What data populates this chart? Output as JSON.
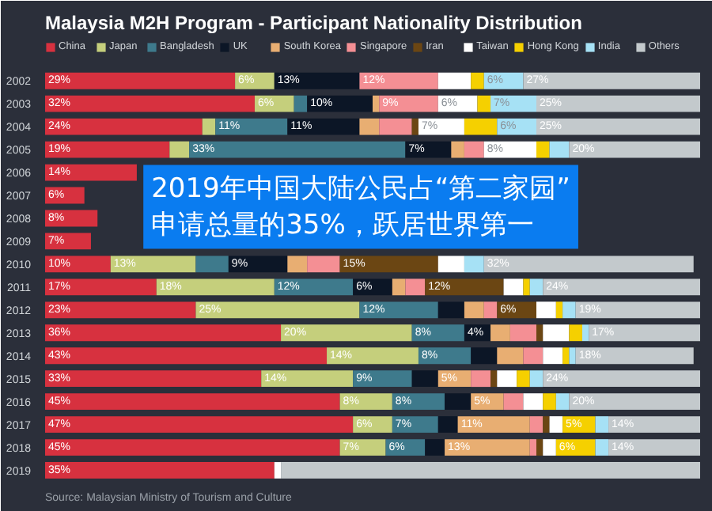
{
  "chart_data": {
    "type": "bar",
    "title": "Malaysia M2H Program - Participant Nationality Distribution",
    "orientation": "horizontal",
    "stacked": true,
    "legend": "top",
    "tick_labels": "y",
    "grid": false,
    "xlim": [
      0,
      100
    ],
    "categories": [
      "2002",
      "2003",
      "2004",
      "2005",
      "2006",
      "2007",
      "2008",
      "2009",
      "2010",
      "2011",
      "2012",
      "2013",
      "2014",
      "2015",
      "2016",
      "2017",
      "2018",
      "2019"
    ],
    "series": [
      {
        "name": "China",
        "color": "#d7313f",
        "values": [
          29,
          32,
          24,
          19,
          14,
          6,
          8,
          7,
          10,
          17,
          23,
          36,
          43,
          33,
          45,
          47,
          45,
          35
        ],
        "value_labels": [
          "29%",
          "32%",
          "24%",
          "19%",
          "14%",
          "6%",
          "8%",
          "7%",
          "10%",
          "17%",
          "23%",
          "36%",
          "43%",
          "33%",
          "45%",
          "47%",
          "45%",
          "35%"
        ]
      },
      {
        "name": "Japan",
        "color": "#c5cf7c",
        "values": [
          6,
          6,
          2,
          3,
          null,
          null,
          null,
          null,
          13,
          18,
          25,
          20,
          14,
          14,
          8,
          6,
          7,
          0
        ],
        "value_labels": [
          "6%",
          "6%",
          null,
          null,
          null,
          null,
          null,
          null,
          "13%",
          "18%",
          "25%",
          "20%",
          "14%",
          "14%",
          "8%",
          "6%",
          "7%",
          null
        ]
      },
      {
        "name": "Bangladesh",
        "color": "#3e7a8c",
        "values": [
          0,
          2,
          11,
          33,
          null,
          null,
          null,
          null,
          5,
          12,
          12,
          8,
          8,
          9,
          8,
          7,
          6,
          0
        ],
        "value_labels": [
          null,
          null,
          "11%",
          "33%",
          null,
          null,
          null,
          null,
          null,
          "12%",
          "12%",
          "8%",
          "8%",
          "9%",
          "8%",
          "7%",
          "6%",
          null
        ]
      },
      {
        "name": "UK",
        "color": "#0c1626",
        "values": [
          13,
          10,
          11,
          7,
          null,
          null,
          null,
          null,
          9,
          6,
          4,
          4,
          4,
          4,
          4,
          3,
          3,
          0
        ],
        "value_labels": [
          "13%",
          "10%",
          "11%",
          "7%",
          null,
          null,
          null,
          null,
          "9%",
          "6%",
          null,
          "4%",
          null,
          null,
          null,
          null,
          null,
          null
        ]
      },
      {
        "name": "South Korea",
        "color": "#e8ae72",
        "values": [
          0,
          1,
          3,
          2,
          null,
          null,
          null,
          null,
          3,
          2,
          3,
          3,
          4,
          5,
          5,
          11,
          13,
          0
        ],
        "value_labels": [
          null,
          null,
          null,
          null,
          null,
          null,
          null,
          null,
          null,
          null,
          null,
          null,
          null,
          "5%",
          "5%",
          "11%",
          "13%",
          null
        ]
      },
      {
        "name": "Singapore",
        "color": "#f48f94",
        "values": [
          12,
          9,
          5,
          3,
          null,
          null,
          null,
          null,
          5,
          3,
          2,
          4,
          3,
          3,
          3,
          2,
          1,
          0
        ],
        "value_labels": [
          "12%",
          "9%",
          null,
          null,
          null,
          null,
          null,
          null,
          null,
          null,
          null,
          null,
          null,
          null,
          null,
          null,
          null,
          null
        ]
      },
      {
        "name": "Iran",
        "color": "#6b4613",
        "values": [
          0,
          0,
          1,
          0,
          null,
          null,
          null,
          null,
          15,
          12,
          6,
          1,
          0,
          1,
          0,
          1,
          1,
          0
        ],
        "value_labels": [
          null,
          null,
          null,
          null,
          null,
          null,
          null,
          null,
          "15%",
          "12%",
          "6%",
          null,
          null,
          null,
          null,
          null,
          null,
          null
        ]
      },
      {
        "name": "Taiwan",
        "color": "#ffffff",
        "values": [
          5,
          6,
          7,
          8,
          null,
          null,
          null,
          null,
          4,
          3,
          3,
          4,
          3,
          3,
          3,
          2,
          2,
          1
        ],
        "value_labels": [
          null,
          "6%",
          "7%",
          "8%",
          null,
          null,
          null,
          null,
          null,
          null,
          null,
          null,
          null,
          null,
          null,
          null,
          null,
          null
        ]
      },
      {
        "name": "Hong Kong",
        "color": "#f5d000",
        "values": [
          2,
          2,
          5,
          2,
          null,
          null,
          null,
          null,
          0,
          1,
          1,
          2,
          1,
          2,
          2,
          5,
          6,
          0
        ],
        "value_labels": [
          null,
          null,
          null,
          null,
          null,
          null,
          null,
          null,
          null,
          null,
          null,
          null,
          null,
          null,
          null,
          "5%",
          "6%",
          null
        ]
      },
      {
        "name": "India",
        "color": "#a6e1f5",
        "values": [
          6,
          7,
          6,
          3,
          null,
          null,
          null,
          null,
          3,
          2,
          2,
          1,
          1,
          2,
          2,
          2,
          2,
          0
        ],
        "value_labels": [
          "6%",
          "7%",
          "6%",
          null,
          null,
          null,
          null,
          null,
          null,
          null,
          null,
          null,
          null,
          null,
          null,
          null,
          null,
          null
        ]
      },
      {
        "name": "Others",
        "color": "#c3c9cc",
        "values": [
          27,
          25,
          25,
          20,
          null,
          null,
          null,
          null,
          32,
          24,
          19,
          17,
          18,
          24,
          20,
          14,
          14,
          64
        ],
        "value_labels": [
          "27%",
          "25%",
          "25%",
          "20%",
          null,
          null,
          null,
          null,
          "32%",
          "24%",
          "19%",
          "17%",
          "18%",
          "24%",
          "20%",
          "14%",
          "14%",
          null
        ]
      }
    ],
    "annotations": [
      "2019年中国大陆公民占“第二家园”申请总量的35%，跃居世界第一",
      "Source: Malaysian Ministry of Tourism and Culture"
    ]
  }
}
